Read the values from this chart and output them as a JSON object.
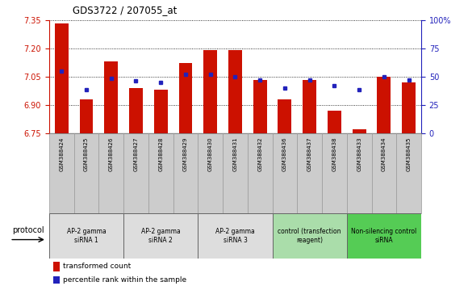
{
  "title": "GDS3722 / 207055_at",
  "samples": [
    "GSM388424",
    "GSM388425",
    "GSM388426",
    "GSM388427",
    "GSM388428",
    "GSM388429",
    "GSM388430",
    "GSM388431",
    "GSM388432",
    "GSM388436",
    "GSM388437",
    "GSM388438",
    "GSM388433",
    "GSM388434",
    "GSM388435"
  ],
  "transformed_count": [
    7.33,
    6.93,
    7.13,
    6.99,
    6.98,
    7.12,
    7.19,
    7.19,
    7.03,
    6.93,
    7.03,
    6.87,
    6.77,
    7.05,
    7.02
  ],
  "percentile_rank": [
    55,
    38,
    48,
    46,
    45,
    52,
    52,
    50,
    47,
    40,
    47,
    42,
    38,
    50,
    47
  ],
  "ylim_left": [
    6.75,
    7.35
  ],
  "ylim_right": [
    0,
    100
  ],
  "yticks_left": [
    6.75,
    6.9,
    7.05,
    7.2,
    7.35
  ],
  "ytick_labels_right": [
    "0",
    "25",
    "50",
    "75",
    "100%"
  ],
  "bar_color": "#cc1100",
  "dot_color": "#2222bb",
  "bar_width": 0.55,
  "groups": [
    {
      "label": "AP-2 gamma\nsiRNA 1",
      "indices": [
        0,
        1,
        2
      ],
      "color": "#dddddd"
    },
    {
      "label": "AP-2 gamma\nsiRNA 2",
      "indices": [
        3,
        4,
        5
      ],
      "color": "#dddddd"
    },
    {
      "label": "AP-2 gamma\nsiRNA 3",
      "indices": [
        6,
        7,
        8
      ],
      "color": "#dddddd"
    },
    {
      "label": "control (transfection\nreagent)",
      "indices": [
        9,
        10,
        11
      ],
      "color": "#aaddaa"
    },
    {
      "label": "Non-silencing control\nsiRNA",
      "indices": [
        12,
        13,
        14
      ],
      "color": "#55cc55"
    }
  ],
  "protocol_label": "protocol",
  "legend_bar_label": "transformed count",
  "legend_dot_label": "percentile rank within the sample",
  "background_color": "#ffffff",
  "sample_bg_color": "#cccccc",
  "sample_border_color": "#999999"
}
